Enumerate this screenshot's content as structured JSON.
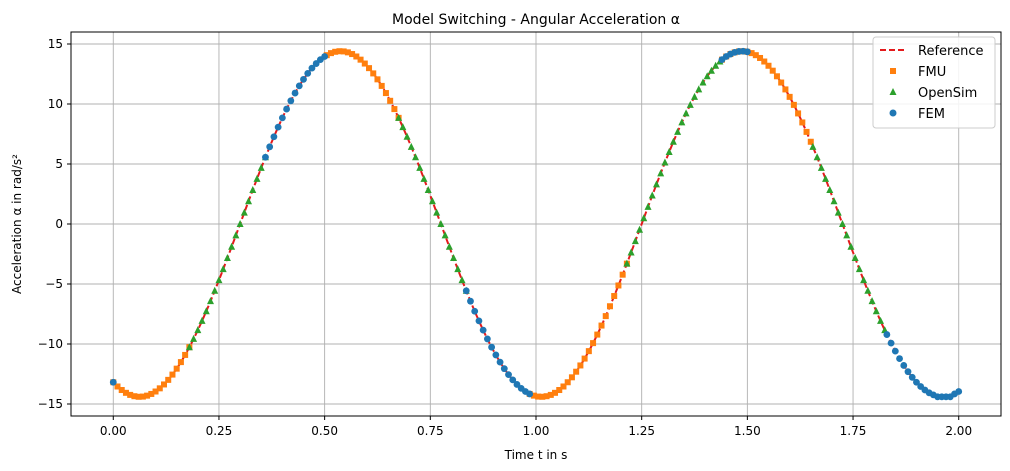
{
  "chart_data": {
    "type": "line",
    "title": "Model Switching - Angular Acceleration α",
    "xlabel": "Time t in s",
    "ylabel": "Acceleration α in rad/s²",
    "xlim": [
      -0.1,
      2.1
    ],
    "ylim": [
      -16,
      16
    ],
    "xticks": [
      0.0,
      0.25,
      0.5,
      0.75,
      1.0,
      1.25,
      1.5,
      1.75,
      2.0
    ],
    "xtick_labels": [
      "0.00",
      "0.25",
      "0.50",
      "0.75",
      "1.00",
      "1.25",
      "1.50",
      "1.75",
      "2.00"
    ],
    "yticks": [
      -15,
      -10,
      -5,
      0,
      5,
      10,
      15
    ],
    "ytick_labels": [
      "−15",
      "−10",
      "−5",
      "0",
      "5",
      "10",
      "15"
    ],
    "grid": true,
    "legend": "top-right",
    "colors": {
      "reference": "#e41a1c",
      "fmu": "#ff7f0e",
      "opensim": "#2ca02c",
      "fem": "#1f77b4"
    },
    "reference_curve": {
      "name": "Reference",
      "function": "alpha(t) = 14.4 * sin(2*pi*(t - 0.3) / 0.95), clamped to [-14.4, 14.4] near endpoints",
      "amplitude": 14.4,
      "period": 0.95,
      "phase_shift": 0.3
    },
    "series": [
      {
        "name": "Reference",
        "marker": "dashed-line"
      },
      {
        "name": "FMU",
        "marker": "square",
        "segments": [
          [
            0.0,
            0.18
          ],
          [
            0.505,
            0.675
          ],
          [
            0.985,
            1.215
          ],
          [
            1.44,
            1.655
          ]
        ]
      },
      {
        "name": "OpenSim",
        "marker": "triangle",
        "segments": [
          [
            0.18,
            0.36
          ],
          [
            0.675,
            0.835
          ],
          [
            1.215,
            1.44
          ],
          [
            1.655,
            1.83
          ]
        ]
      },
      {
        "name": "FEM",
        "marker": "circle",
        "segments": [
          [
            0.0,
            0.0
          ],
          [
            0.36,
            0.505
          ],
          [
            0.835,
            0.985
          ],
          [
            1.44,
            1.5
          ],
          [
            1.83,
            2.0
          ]
        ]
      }
    ],
    "sample_step": 0.01
  }
}
